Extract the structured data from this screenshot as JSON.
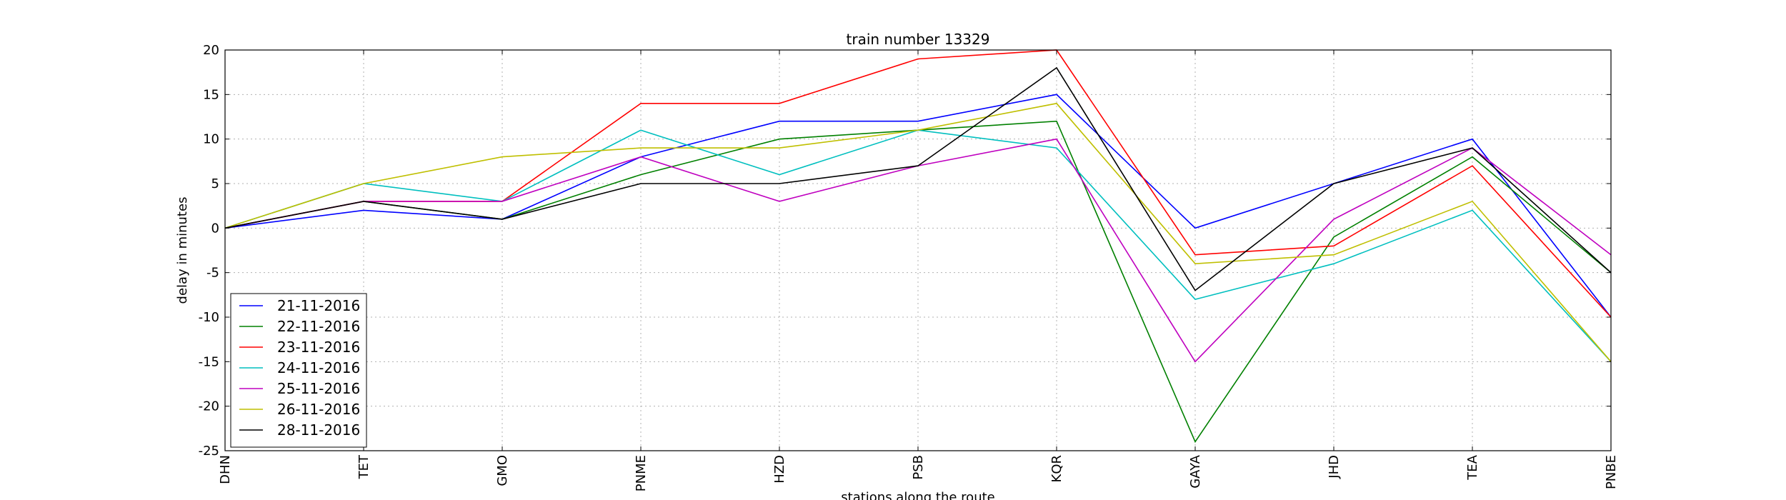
{
  "chart_data": {
    "type": "line",
    "title": "train number 13329",
    "xlabel": "stations along the route",
    "ylabel": "delay in minutes",
    "categories": [
      "DHN",
      "TET",
      "GMO",
      "PNME",
      "HZD",
      "PSB",
      "KQR",
      "GAYA",
      "JHD",
      "TEA",
      "PNBE"
    ],
    "ylim": [
      -25,
      20
    ],
    "yticks": [
      -25,
      -20,
      -15,
      -10,
      -5,
      0,
      5,
      10,
      15,
      20
    ],
    "grid": true,
    "legend_position": "lower-left",
    "series": [
      {
        "name": "21-11-2016",
        "color": "#0000ff",
        "values": [
          0,
          2,
          1,
          8,
          12,
          12,
          15,
          0,
          5,
          10,
          -10
        ]
      },
      {
        "name": "22-11-2016",
        "color": "#008000",
        "values": [
          0,
          3,
          1,
          6,
          10,
          11,
          12,
          -24,
          -1,
          8,
          -5
        ]
      },
      {
        "name": "23-11-2016",
        "color": "#ff0000",
        "values": [
          0,
          3,
          3,
          14,
          14,
          19,
          20,
          -3,
          -2,
          7,
          -10
        ]
      },
      {
        "name": "24-11-2016",
        "color": "#00bfbf",
        "values": [
          0,
          5,
          3,
          11,
          6,
          11,
          9,
          -8,
          -4,
          2,
          -15
        ]
      },
      {
        "name": "25-11-2016",
        "color": "#bf00bf",
        "values": [
          0,
          3,
          3,
          8,
          3,
          7,
          10,
          -15,
          1,
          9,
          -3
        ]
      },
      {
        "name": "26-11-2016",
        "color": "#bfbf00",
        "values": [
          0,
          5,
          8,
          9,
          9,
          11,
          14,
          -4,
          -3,
          3,
          -15
        ]
      },
      {
        "name": "28-11-2016",
        "color": "#000000",
        "values": [
          0,
          3,
          1,
          5,
          5,
          7,
          18,
          -7,
          5,
          9,
          -5
        ]
      }
    ]
  }
}
